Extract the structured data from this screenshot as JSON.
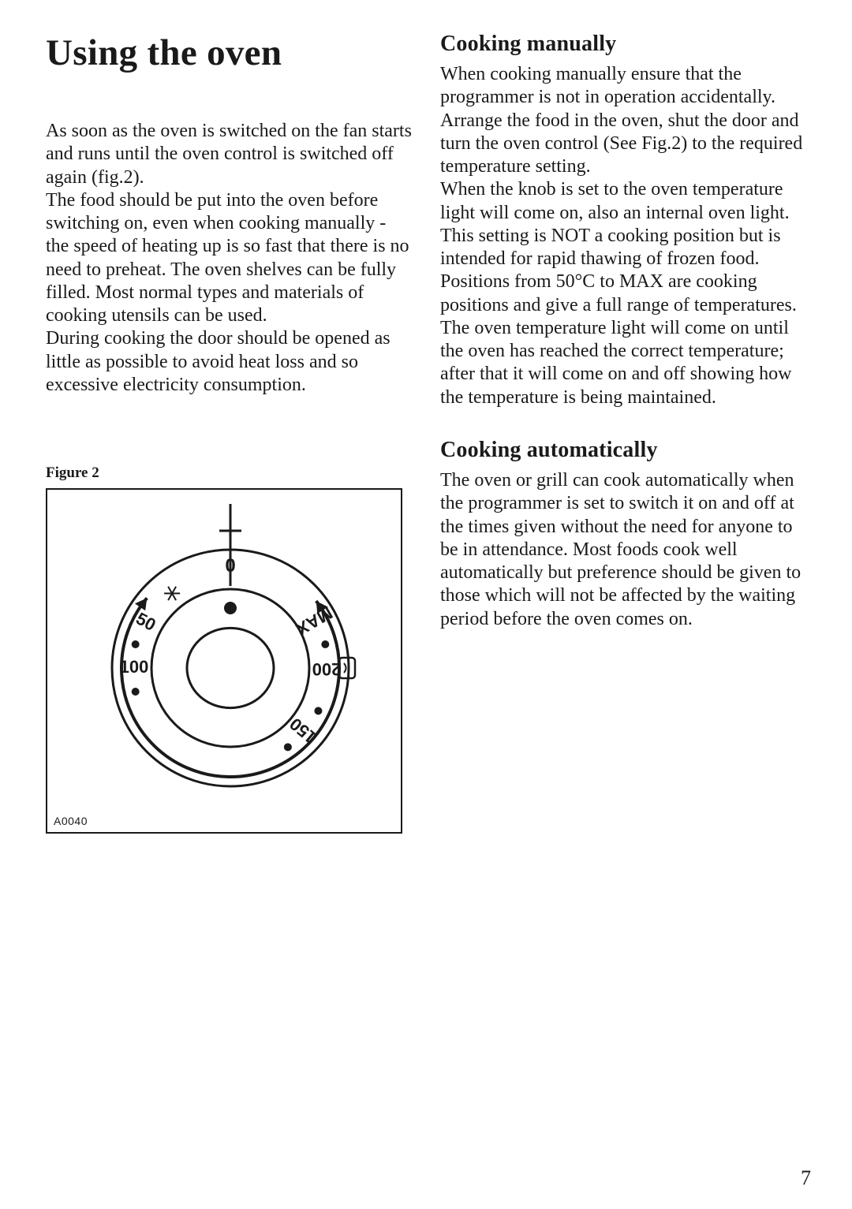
{
  "left": {
    "title": "Using the oven",
    "intro": "As soon as the oven is switched on the fan starts and runs until the oven control is switched off again (fig.2).\nThe food should be put into the oven before switching on, even when cooking manually - the speed of heating up is so fast that there is no need to preheat. The oven shelves can be fully filled. Most normal types and materials of cooking utensils can be used.\nDuring cooking the door should be opened as little as possible to avoid heat loss and so excessive electricity consumption."
  },
  "right": {
    "section1": {
      "heading": "Cooking manually",
      "body": "When cooking manually ensure that the programmer is not in operation accidentally.\nArrange the food in the oven, shut the door and turn the oven control (See Fig.2) to the required temperature setting.\nWhen the knob is set to the oven temperature light will come on, also an internal oven light.\nThis setting is NOT a cooking position but is intended for rapid thawing of frozen food.\nPositions from 50°C to MAX are cooking positions and give a full range of temperatures. The oven temperature light will come on until the oven has reached the correct temperature; after that it will come on and off showing how the temperature is being maintained."
    },
    "section2": {
      "heading": "Cooking automatically",
      "body": "The oven or grill can cook automatically when the programmer is set to switch it on and off at the times given without the need for anyone to be in attendance. Most foods cook well automatically but preference should be given to those which will not be affected by the waiting period before the oven comes on."
    }
  },
  "figure": {
    "label": "Figure 2",
    "code": "A0040",
    "dial": {
      "type": "diagram",
      "outer_radius": 150,
      "mid_radius": 100,
      "inner_radius": 55,
      "stroke_color": "#1a1a1a",
      "bg": "#ffffff",
      "pointer_color": "#1a1a1a",
      "top_label": "0",
      "ticks": [
        {
          "label": "50",
          "angle": -62
        },
        {
          "label": "100",
          "angle": -90
        },
        {
          "label": "150",
          "angle": -230
        },
        {
          "label": "200",
          "angle": -270
        },
        {
          "label": "MAX",
          "angle": -300
        }
      ],
      "dot_angles": [
        -76,
        -104,
        -216,
        -244,
        -284
      ],
      "font_size": 22,
      "lamp_icon_angle": 0
    }
  },
  "page_number": "7"
}
